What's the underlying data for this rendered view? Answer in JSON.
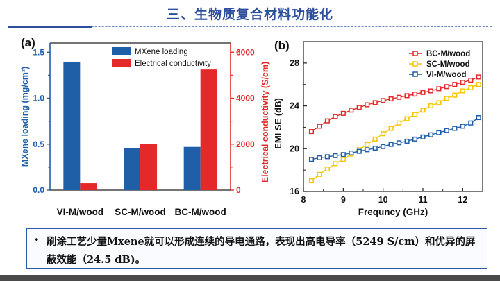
{
  "slide": {
    "title": "三、生物质复合材料功能化",
    "note": "刷涂工艺少量Mxene就可以形成连续的导电通路，表现出高电导率（5249 S/cm）和优异的屏蔽效能（24.5 dB)。",
    "bullet": "•"
  },
  "colors": {
    "blue": "#1f5fa8",
    "red": "#e4292b",
    "yellow": "#f7c600",
    "title": "#2e4f9e"
  },
  "chart_data": [
    {
      "panel": "(a)",
      "type": "bar",
      "categories": [
        "VI-M/wood",
        "SC-M/wood",
        "BC-M/wood"
      ],
      "series": [
        {
          "name": "MXene loading",
          "axis": "left",
          "color": "#1f5fa8",
          "values": [
            1.39,
            0.46,
            0.47
          ]
        },
        {
          "name": "Electrical conductivity",
          "axis": "right",
          "color": "#e4292b",
          "values": [
            300,
            2000,
            5249
          ]
        }
      ],
      "ylabel_left": "MXene loading (mg/cm²)",
      "ylabel_right": "Electrical conductivity (S/cm)",
      "ylim_left": [
        0,
        1.6
      ],
      "ylim_right": [
        0,
        6400
      ],
      "yticks_left": [
        "0.0",
        "0.5",
        "1.0",
        "1.5"
      ],
      "yticks_right": [
        "0",
        "2000",
        "4000",
        "6000"
      ],
      "legend_position": "top-right"
    },
    {
      "panel": "(b)",
      "type": "line",
      "x": [
        8.2,
        8.4,
        8.6,
        8.8,
        9.0,
        9.2,
        9.4,
        9.6,
        9.8,
        10.0,
        10.2,
        10.4,
        10.6,
        10.8,
        11.0,
        11.2,
        11.4,
        11.6,
        11.8,
        12.0,
        12.2,
        12.4
      ],
      "series": [
        {
          "name": "BC-M/wood",
          "color": "#e4292b",
          "values": [
            21.6,
            22.1,
            22.6,
            23.0,
            23.3,
            23.6,
            23.85,
            24.1,
            24.3,
            24.5,
            24.65,
            24.8,
            24.95,
            25.1,
            25.25,
            25.4,
            25.6,
            25.8,
            26.0,
            26.2,
            26.4,
            26.7
          ]
        },
        {
          "name": "SC-M/wood",
          "color": "#f7c600",
          "values": [
            17.0,
            17.6,
            18.1,
            18.6,
            19.0,
            19.5,
            19.9,
            20.4,
            20.9,
            21.4,
            21.9,
            22.4,
            22.8,
            23.2,
            23.6,
            24.0,
            24.3,
            24.7,
            25.0,
            25.4,
            25.7,
            26.0
          ]
        },
        {
          "name": "VI-M/wood",
          "color": "#1f5fa8",
          "values": [
            19.0,
            19.15,
            19.25,
            19.35,
            19.45,
            19.6,
            19.75,
            19.9,
            20.05,
            20.2,
            20.4,
            20.55,
            20.7,
            20.9,
            21.1,
            21.3,
            21.5,
            21.7,
            21.9,
            22.1,
            22.4,
            22.9
          ]
        }
      ],
      "xlabel": "Frequncy (GHz)",
      "ylabel": "EMI SE (dB)",
      "xlim": [
        8,
        12.5
      ],
      "ylim": [
        16,
        30
      ],
      "xticks": [
        8,
        9,
        10,
        11,
        12
      ],
      "yticks": [
        16,
        20,
        24,
        28
      ],
      "legend_position": "top-right"
    }
  ]
}
